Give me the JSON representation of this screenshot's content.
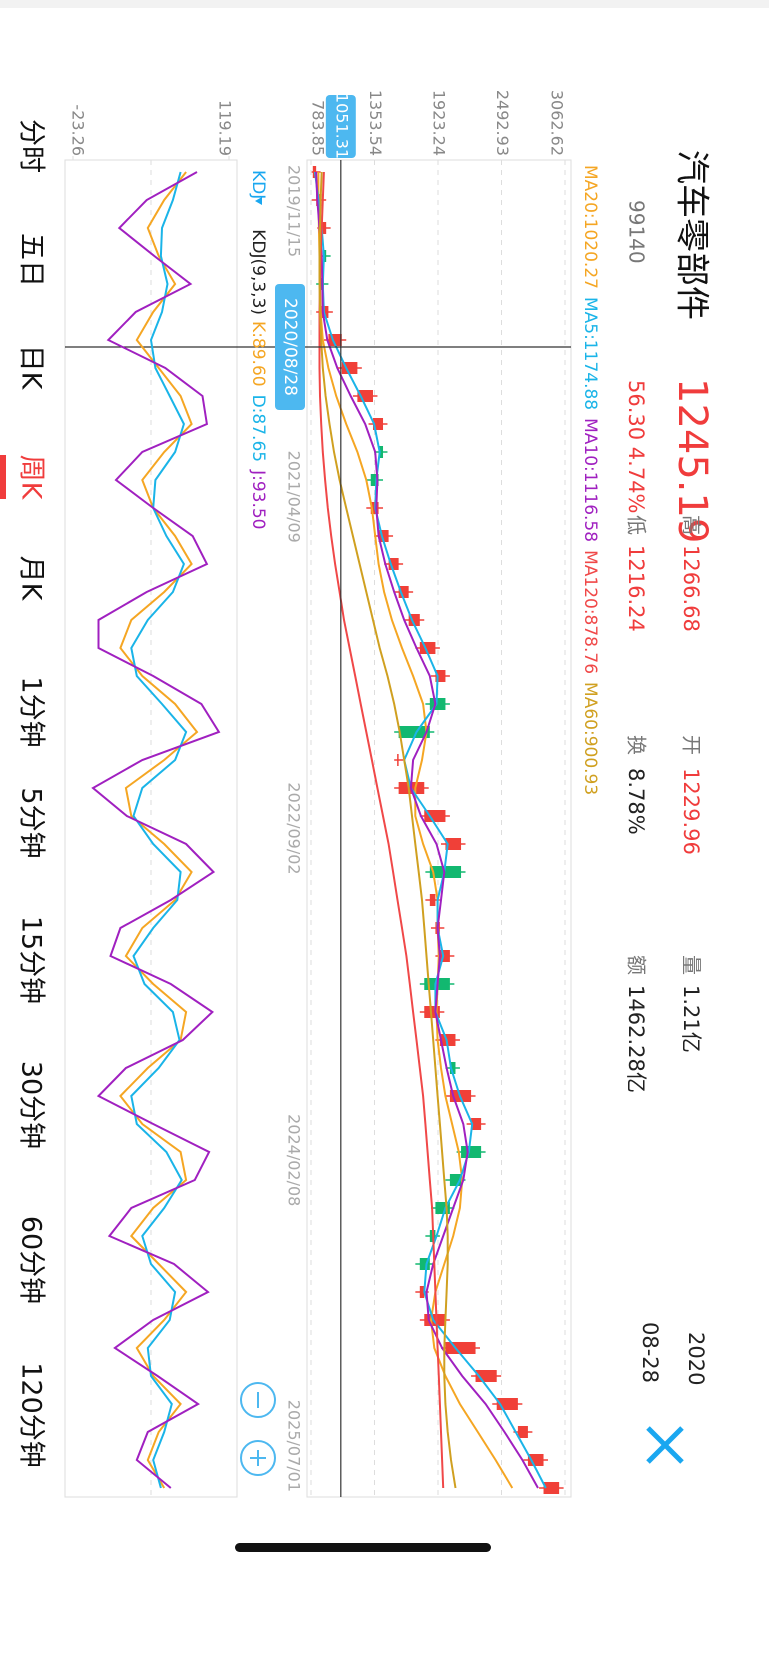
{
  "header": {
    "title": "汽车零部件",
    "code": "99140",
    "price": "1245.19",
    "change": "56.30 4.74%",
    "stats": [
      {
        "label": "高",
        "value": "1266.68"
      },
      {
        "label": "低",
        "value": "1216.24"
      },
      {
        "label": "开",
        "value": "1229.96"
      },
      {
        "label": "换",
        "value": "8.78%"
      },
      {
        "label": "量",
        "value": "1.21亿"
      },
      {
        "label": "额",
        "value": "1462.28亿"
      }
    ],
    "year": "2020",
    "date": "08-28"
  },
  "chart_data": [
    {
      "type": "candlestick",
      "up_color": "#f04038",
      "down_color": "#12b870",
      "ylim": [
        783.85,
        3062.62
      ],
      "yticks": [
        3062.62,
        2492.93,
        1923.24,
        1353.54,
        783.85
      ],
      "x_labels": [
        "2019/11/15",
        "2021/04/09",
        "2022/09/02",
        "2024/02/08",
        "2025/07/01"
      ],
      "crosshair": {
        "price": 1051.31,
        "date": "2020/08/28"
      },
      "open": [
        800,
        830,
        880,
        920,
        900,
        870,
        940,
        1060,
        1200,
        1340,
        1430,
        1390,
        1320,
        1390,
        1480,
        1570,
        1660,
        1760,
        1900,
        1990,
        1850,
        1570,
        1570,
        1800,
        1990,
        2130,
        1850,
        1900,
        1940,
        2030,
        1800,
        1940,
        2080,
        2030,
        2220,
        2310,
        2130,
        2030,
        1900,
        1850,
        1760,
        1800,
        1990,
        2260,
        2450,
        2640,
        2730,
        2870
      ],
      "high": [
        870,
        920,
        960,
        960,
        940,
        980,
        1100,
        1240,
        1380,
        1470,
        1470,
        1430,
        1430,
        1520,
        1610,
        1700,
        1800,
        1940,
        2030,
        2030,
        1890,
        1610,
        1840,
        2030,
        2170,
        2170,
        1940,
        1980,
        2070,
        2070,
        1980,
        2120,
        2120,
        2260,
        2350,
        2350,
        2170,
        2070,
        1940,
        1890,
        1840,
        2030,
        2300,
        2490,
        2680,
        2770,
        2910,
        3050
      ],
      "low": [
        790,
        790,
        840,
        860,
        830,
        830,
        900,
        1020,
        1160,
        1300,
        1350,
        1280,
        1280,
        1350,
        1440,
        1530,
        1620,
        1720,
        1860,
        1810,
        1530,
        1530,
        1530,
        1760,
        1950,
        1810,
        1810,
        1860,
        1900,
        1760,
        1760,
        1900,
        1990,
        1990,
        2180,
        2090,
        1990,
        1860,
        1810,
        1720,
        1720,
        1760,
        1950,
        2220,
        2410,
        2600,
        2690,
        2830
      ],
      "close": [
        830,
        880,
        920,
        900,
        870,
        940,
        1060,
        1200,
        1340,
        1430,
        1390,
        1320,
        1390,
        1480,
        1570,
        1660,
        1760,
        1900,
        1990,
        1850,
        1570,
        1570,
        1800,
        1990,
        2130,
        1850,
        1900,
        1940,
        2030,
        1800,
        1940,
        2080,
        2030,
        2220,
        2310,
        2130,
        2030,
        1900,
        1850,
        1760,
        1800,
        1990,
        2260,
        2450,
        2640,
        2730,
        2870,
        3010
      ],
      "series": [
        {
          "name": "MA20:1020.27",
          "color": "#f5a623",
          "values": [
            850,
            850,
            855,
            860,
            865,
            870,
            890,
            940,
            1010,
            1100,
            1200,
            1280,
            1330,
            1360,
            1390,
            1440,
            1510,
            1600,
            1700,
            1790,
            1820,
            1780,
            1720,
            1720,
            1790,
            1880,
            1920,
            1920,
            1930,
            1920,
            1910,
            1920,
            1950,
            1990,
            2050,
            2110,
            2140,
            2120,
            2060,
            1980,
            1900,
            1860,
            1890,
            1990,
            2120,
            2280,
            2440,
            2590
          ]
        },
        {
          "name": "MA5:1174.88",
          "color": "#1ab4e8",
          "values": [
            820,
            850,
            880,
            900,
            890,
            900,
            980,
            1100,
            1230,
            1350,
            1400,
            1370,
            1360,
            1420,
            1500,
            1590,
            1690,
            1810,
            1920,
            1910,
            1730,
            1620,
            1680,
            1850,
            2010,
            1980,
            1920,
            1920,
            1970,
            1900,
            1900,
            2000,
            2040,
            2120,
            2230,
            2200,
            2120,
            1990,
            1910,
            1820,
            1800,
            1880,
            2080,
            2290,
            2480,
            2620,
            2760,
            2890
          ]
        },
        {
          "name": "MA10:1116.58",
          "color": "#a020c0",
          "values": [
            830,
            840,
            860,
            880,
            885,
            890,
            930,
            1020,
            1140,
            1270,
            1360,
            1380,
            1370,
            1390,
            1450,
            1530,
            1620,
            1730,
            1850,
            1900,
            1820,
            1700,
            1680,
            1770,
            1910,
            1980,
            1950,
            1920,
            1940,
            1920,
            1900,
            1950,
            2000,
            2060,
            2150,
            2190,
            2150,
            2060,
            1970,
            1880,
            1820,
            1840,
            1960,
            2140,
            2350,
            2520,
            2680,
            2820
          ]
        },
        {
          "name": "MA120:878.76",
          "color": "#f04848",
          "values": [
            900,
            890,
            880,
            870,
            865,
            860,
            860,
            860,
            865,
            875,
            890,
            910,
            935,
            965,
            1000,
            1040,
            1080,
            1130,
            1180,
            1230,
            1280,
            1330,
            1380,
            1430,
            1480,
            1520,
            1560,
            1600,
            1640,
            1670,
            1700,
            1730,
            1760,
            1790,
            1810,
            1830,
            1850,
            1870,
            1880,
            1890,
            1900,
            1910,
            1920,
            1930,
            1940,
            1950,
            1960,
            1970
          ]
        },
        {
          "name": "MA60:900.93",
          "color": "#d0a020",
          "values": [
            880,
            870,
            865,
            860,
            860,
            865,
            875,
            890,
            915,
            950,
            990,
            1040,
            1100,
            1160,
            1220,
            1280,
            1340,
            1400,
            1470,
            1530,
            1580,
            1620,
            1660,
            1690,
            1720,
            1750,
            1780,
            1800,
            1820,
            1840,
            1860,
            1880,
            1900,
            1920,
            1940,
            1960,
            1980,
            2000,
            2010,
            2010,
            2000,
            1990,
            1980,
            1980,
            1990,
            2010,
            2040,
            2080
          ]
        }
      ]
    },
    {
      "type": "line",
      "indicator": "KDJ",
      "params": "KDJ(9,3,3)",
      "ylim": [
        -23.26,
        119.19
      ],
      "yticks": [
        119.19,
        -23.26
      ],
      "series": [
        {
          "name": "K:89.60",
          "color": "#f5a623",
          "values": [
            80,
            60,
            45,
            55,
            70,
            50,
            35,
            55,
            75,
            85,
            60,
            40,
            50,
            70,
            85,
            60,
            30,
            20,
            40,
            70,
            90,
            60,
            25,
            30,
            60,
            85,
            70,
            40,
            25,
            50,
            80,
            75,
            45,
            20,
            40,
            75,
            80,
            50,
            30,
            55,
            80,
            60,
            35,
            50,
            75,
            55,
            45,
            60
          ]
        },
        {
          "name": "D:87.65",
          "color": "#1ab4e8",
          "values": [
            75,
            68,
            58,
            57,
            63,
            58,
            48,
            52,
            65,
            78,
            70,
            52,
            50,
            62,
            78,
            68,
            45,
            30,
            35,
            58,
            80,
            70,
            40,
            32,
            50,
            75,
            72,
            50,
            32,
            42,
            68,
            74,
            55,
            30,
            35,
            62,
            76,
            60,
            40,
            48,
            70,
            65,
            45,
            48,
            67,
            60,
            50,
            57
          ]
        },
        {
          "name": "J:93.50",
          "color": "#a020c0",
          "values": [
            90,
            44,
            19,
            51,
            84,
            34,
            9,
            61,
            95,
            99,
            40,
            16,
            50,
            86,
            99,
            44,
            0,
            0,
            50,
            94,
            110,
            40,
            -5,
            26,
            80,
            105,
            66,
            20,
            11,
            66,
            104,
            77,
            25,
            0,
            50,
            101,
            88,
            30,
            10,
            69,
            100,
            50,
            15,
            54,
            91,
            45,
            35,
            66
          ]
        }
      ]
    }
  ],
  "tabs": [
    {
      "label": "分时"
    },
    {
      "label": "五日"
    },
    {
      "label": "日K"
    },
    {
      "label": "周K",
      "active": true
    },
    {
      "label": "月K"
    },
    {
      "label": "1分钟"
    },
    {
      "label": "5分钟"
    },
    {
      "label": "15分钟"
    },
    {
      "label": "30分钟"
    },
    {
      "label": "60分钟"
    },
    {
      "label": "120分钟"
    }
  ]
}
